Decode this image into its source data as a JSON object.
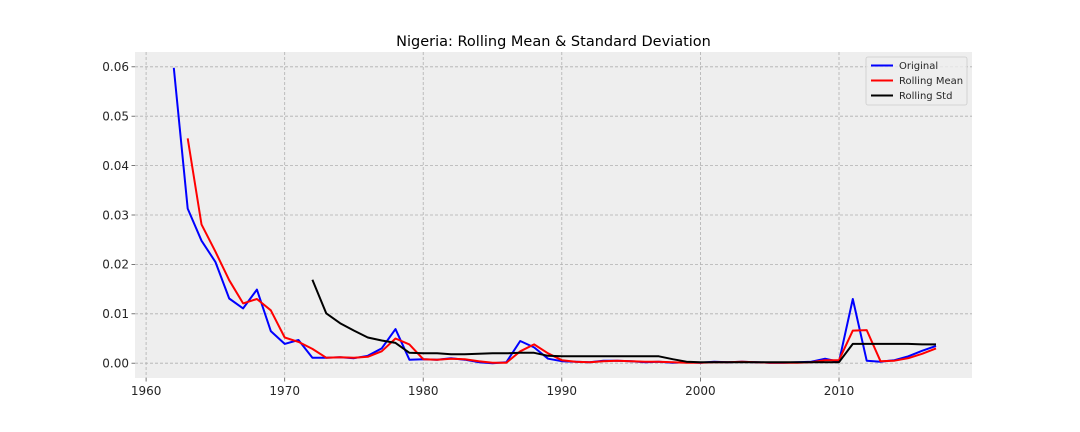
{
  "chart_data": {
    "type": "line",
    "title": "Nigeria: Rolling Mean & Standard Deviation",
    "xlabel": "",
    "ylabel": "",
    "xlim": [
      1959.2,
      2019.6
    ],
    "ylim": [
      -0.003,
      0.063
    ],
    "x_ticks": [
      1960,
      1970,
      1980,
      1990,
      2000,
      2010
    ],
    "x_tick_labels": [
      "1960",
      "1970",
      "1980",
      "1990",
      "2000",
      "2010"
    ],
    "y_ticks": [
      0.0,
      0.01,
      0.02,
      0.03,
      0.04,
      0.05,
      0.06
    ],
    "y_tick_labels": [
      "0.00",
      "0.01",
      "0.02",
      "0.03",
      "0.04",
      "0.05",
      "0.06"
    ],
    "grid": true,
    "legend_position": "top-right",
    "series": [
      {
        "name": "Original",
        "color": "#0000ff",
        "x": [
          1962,
          1963,
          1964,
          1965,
          1966,
          1967,
          1968,
          1969,
          1970,
          1971,
          1972,
          1973,
          1974,
          1975,
          1976,
          1977,
          1978,
          1979,
          1980,
          1981,
          1982,
          1983,
          1984,
          1985,
          1986,
          1987,
          1988,
          1989,
          1990,
          1991,
          1992,
          1993,
          1994,
          1995,
          1996,
          1997,
          1998,
          1999,
          2000,
          2001,
          2002,
          2003,
          2004,
          2005,
          2006,
          2007,
          2008,
          2009,
          2010,
          2011,
          2012,
          2013,
          2014,
          2015,
          2016,
          2017
        ],
        "y": [
          0.0598,
          0.0313,
          0.0248,
          0.0205,
          0.0131,
          0.0111,
          0.0149,
          0.0065,
          0.0039,
          0.0047,
          0.0011,
          0.0011,
          0.0012,
          0.001,
          0.0015,
          0.003,
          0.0069,
          0.0007,
          0.0008,
          0.0007,
          0.001,
          0.0007,
          0.0002,
          0.0,
          0.0002,
          0.0045,
          0.0032,
          0.0009,
          0.0004,
          0.0003,
          0.0002,
          0.0005,
          0.0005,
          0.0004,
          0.0002,
          0.0003,
          0.0001,
          0.0002,
          0.0001,
          0.0003,
          0.0002,
          0.0003,
          0.0002,
          0.0001,
          0.0001,
          0.0002,
          0.0003,
          0.0009,
          0.0003,
          0.013,
          0.0005,
          0.0003,
          0.0006,
          0.0014,
          0.0025,
          0.0035
        ]
      },
      {
        "name": "Rolling Mean",
        "color": "#ff0000",
        "x": [
          1963,
          1964,
          1965,
          1966,
          1967,
          1968,
          1969,
          1970,
          1971,
          1972,
          1973,
          1974,
          1975,
          1976,
          1977,
          1978,
          1979,
          1980,
          1981,
          1982,
          1983,
          1984,
          1985,
          1986,
          1987,
          1988,
          1989,
          1990,
          1991,
          1992,
          1993,
          1994,
          1995,
          1996,
          1997,
          1998,
          1999,
          2000,
          2001,
          2002,
          2003,
          2004,
          2005,
          2006,
          2007,
          2008,
          2009,
          2010,
          2011,
          2012,
          2013,
          2014,
          2015,
          2016,
          2017
        ],
        "y": [
          0.0455,
          0.0281,
          0.0226,
          0.0168,
          0.0121,
          0.013,
          0.0107,
          0.0052,
          0.0043,
          0.0029,
          0.0011,
          0.0012,
          0.0011,
          0.0013,
          0.0024,
          0.005,
          0.0038,
          0.0008,
          0.0007,
          0.0009,
          0.0008,
          0.0004,
          0.0001,
          0.0001,
          0.0024,
          0.0038,
          0.002,
          0.0006,
          0.0003,
          0.0002,
          0.0004,
          0.0005,
          0.0004,
          0.0003,
          0.0003,
          0.0002,
          0.0001,
          0.0001,
          0.0002,
          0.0002,
          0.0003,
          0.0002,
          0.0001,
          0.0001,
          0.0001,
          0.0002,
          0.0006,
          0.0006,
          0.0066,
          0.0067,
          0.0004,
          0.0005,
          0.001,
          0.0019,
          0.003
        ]
      },
      {
        "name": "Rolling Std",
        "color": "#000000",
        "x": [
          1972,
          1973,
          1974,
          1975,
          1976,
          1977,
          1978,
          1979,
          1980,
          1981,
          1982,
          1983,
          1984,
          1985,
          1986,
          1987,
          1988,
          1989,
          1990,
          1991,
          1992,
          1993,
          1994,
          1995,
          1996,
          1997,
          1998,
          1999,
          2000,
          2001,
          2002,
          2003,
          2004,
          2005,
          2006,
          2007,
          2008,
          2009,
          2010,
          2011,
          2012,
          2013,
          2014,
          2015,
          2016,
          2017
        ],
        "y": [
          0.0169,
          0.0101,
          0.0081,
          0.0066,
          0.0052,
          0.0046,
          0.0041,
          0.0021,
          0.002,
          0.002,
          0.0018,
          0.0018,
          0.0019,
          0.002,
          0.002,
          0.0021,
          0.0021,
          0.0015,
          0.0014,
          0.0014,
          0.0014,
          0.0014,
          0.0014,
          0.0014,
          0.0014,
          0.0014,
          0.0008,
          0.0003,
          0.0002,
          0.0002,
          0.0002,
          0.0002,
          0.0002,
          0.0002,
          0.0002,
          0.0002,
          0.0002,
          0.0002,
          0.0002,
          0.0039,
          0.0039,
          0.0039,
          0.0039,
          0.0039,
          0.0038,
          0.0038
        ]
      }
    ]
  }
}
